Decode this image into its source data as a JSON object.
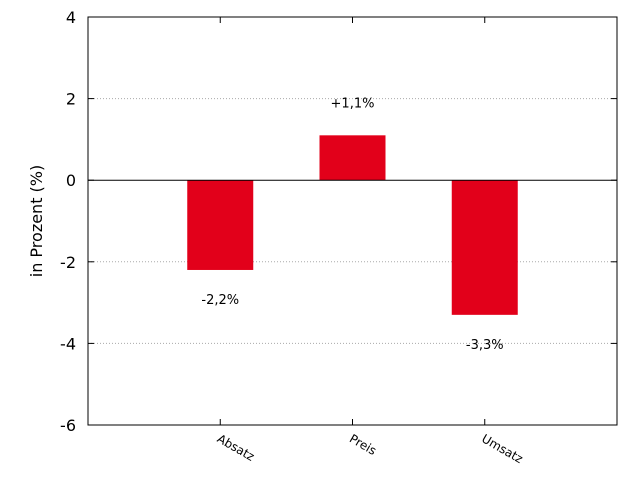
{
  "chart_data": {
    "type": "bar",
    "categories": [
      "Absatz",
      "Preis",
      "Umsatz"
    ],
    "values": [
      -2.2,
      1.1,
      -3.3
    ],
    "data_labels": [
      "-2,2%",
      "+1,1%",
      "-3,3%"
    ],
    "xlabel": "",
    "ylabel": "in Prozent (%)",
    "ylim": [
      -6,
      4
    ],
    "yticks": [
      4,
      2,
      0,
      -2,
      -4,
      -6
    ],
    "grid": "horizontal dotted",
    "bar_color": "#e2001a"
  }
}
